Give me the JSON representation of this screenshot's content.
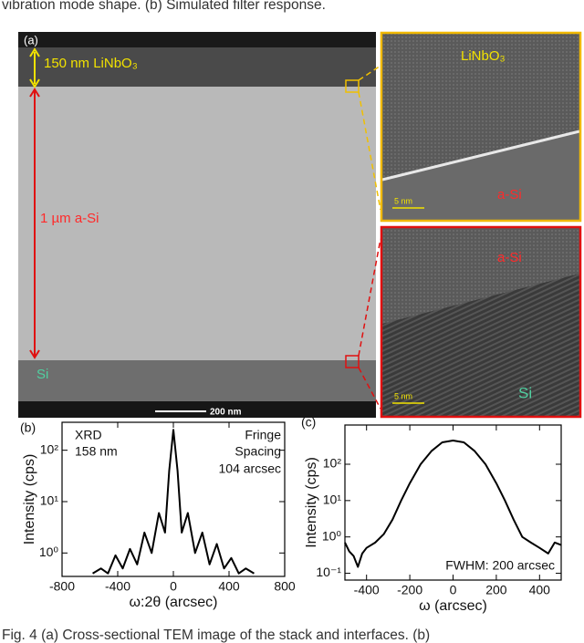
{
  "caption_top": "vibration mode shape. (b) Simulated filter response.",
  "panel_a": {
    "label": "(a)",
    "layer_top": "150 nm LiNbO₃",
    "layer_mid": "1 µm a-Si",
    "layer_bottom": "Si",
    "scale_bar": "200 nm",
    "inset_top": {
      "upper": "LiNbO₃",
      "lower": "a-Si",
      "scale_bar": "5 nm"
    },
    "inset_bottom": {
      "upper": "a-Si",
      "lower": "Si",
      "scale_bar": "5 nm"
    }
  },
  "chart_data": [
    {
      "type": "line",
      "panel_label": "(b)",
      "xlabel": "ω:2θ (arcsec)",
      "ylabel": "Intensity (cps)",
      "annotations": [
        "XRD",
        "158 nm",
        "Fringe",
        "Spacing",
        "104 arcsec"
      ],
      "log_y": true,
      "color": "#000000",
      "x": [
        -580,
        -520,
        -470,
        -416,
        -364,
        -312,
        -260,
        -208,
        -156,
        -104,
        -60,
        -30,
        0,
        30,
        60,
        104,
        156,
        208,
        260,
        312,
        364,
        416,
        470,
        520,
        580
      ],
      "values": [
        0.4,
        0.5,
        0.4,
        0.9,
        0.5,
        1.2,
        0.6,
        2.5,
        1.0,
        6,
        2.5,
        40,
        250,
        40,
        2.5,
        6,
        1.0,
        2.5,
        0.6,
        1.5,
        0.5,
        0.8,
        0.4,
        0.5,
        0.4
      ],
      "xlim": [
        -800,
        800
      ],
      "xticks": [
        -800,
        -400,
        0,
        400,
        800
      ],
      "ylim": [
        0.35,
        350
      ],
      "yticks": [
        {
          "value": 1,
          "label": "10⁰"
        },
        {
          "value": 10,
          "label": "10¹"
        },
        {
          "value": 100,
          "label": "10²"
        }
      ]
    },
    {
      "type": "line",
      "panel_label": "(c)",
      "xlabel": "ω (arcsec)",
      "ylabel": "Intensity (cps)",
      "annotations": [
        "FWHM: 200 arcsec"
      ],
      "log_y": true,
      "color": "#000000",
      "x": [
        -500,
        -480,
        -460,
        -440,
        -420,
        -400,
        -360,
        -320,
        -280,
        -240,
        -200,
        -150,
        -100,
        -50,
        0,
        50,
        100,
        150,
        200,
        240,
        280,
        320,
        360,
        400,
        440,
        470,
        500
      ],
      "values": [
        0.7,
        0.4,
        0.3,
        0.15,
        0.35,
        0.5,
        0.7,
        1.2,
        3,
        10,
        30,
        100,
        230,
        400,
        450,
        400,
        230,
        100,
        30,
        10,
        3,
        1.0,
        0.7,
        0.5,
        0.35,
        0.7,
        0.6
      ],
      "xlim": [
        -500,
        500
      ],
      "xticks": [
        -400,
        -200,
        0,
        200,
        400
      ],
      "ylim": [
        0.065,
        1200
      ],
      "yticks": [
        {
          "value": 0.1,
          "label": "10⁻¹"
        },
        {
          "value": 1,
          "label": "10⁰"
        },
        {
          "value": 10,
          "label": "10¹"
        },
        {
          "value": 100,
          "label": "10²"
        }
      ]
    }
  ],
  "caption_bottom": "Fig. 4 (a) Cross-sectional TEM image of the stack and interfaces. (b)"
}
